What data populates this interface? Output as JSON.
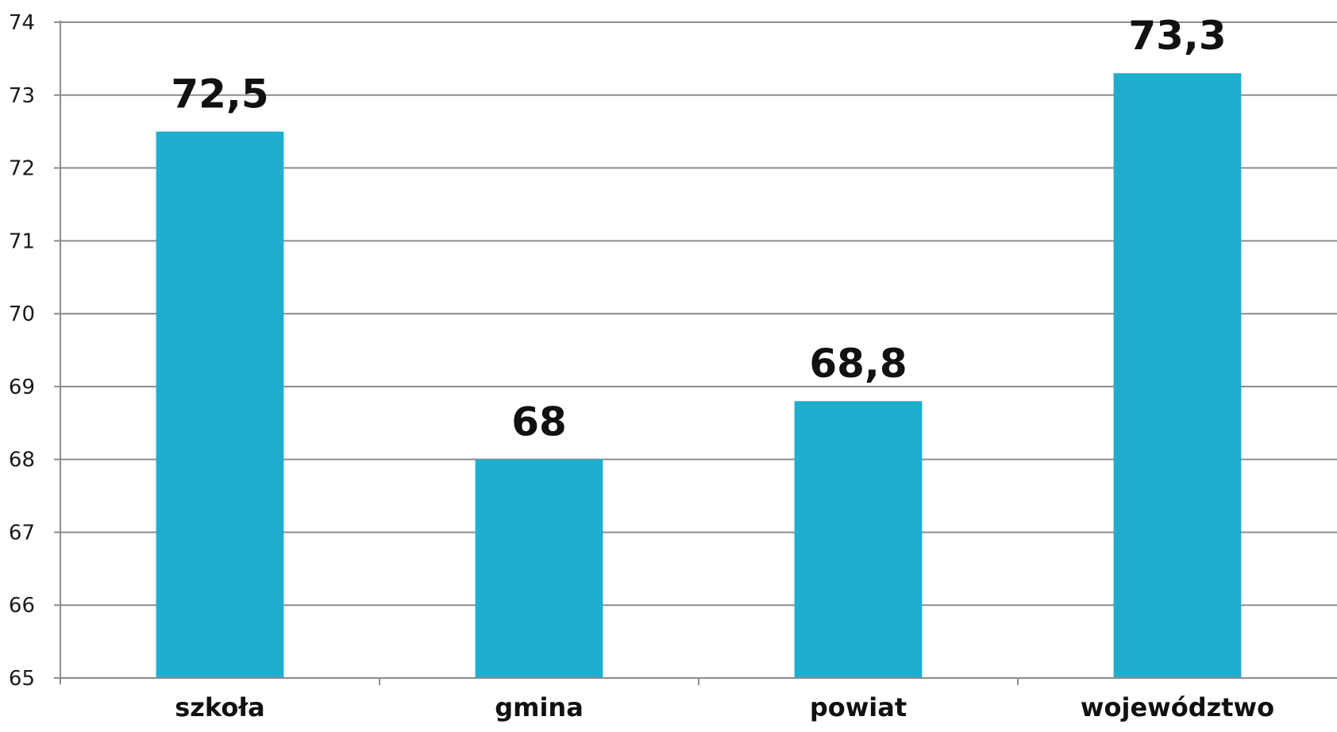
{
  "chart_data": {
    "type": "bar",
    "categories": [
      "szkoła",
      "gmina",
      "powiat",
      "województwo"
    ],
    "values": [
      72.5,
      68,
      68.8,
      73.3
    ],
    "value_labels": [
      "72,5",
      "68",
      "68,8",
      "73,3"
    ],
    "ylim": [
      65,
      74
    ],
    "y_ticks": [
      65,
      66,
      67,
      68,
      69,
      70,
      71,
      72,
      73,
      74
    ],
    "grid": true,
    "title": "",
    "xlabel": "",
    "ylabel": "",
    "colors": {
      "bar": "#20aecf",
      "grid": "#8c8c8c",
      "axis": "#8c8c8c"
    }
  }
}
